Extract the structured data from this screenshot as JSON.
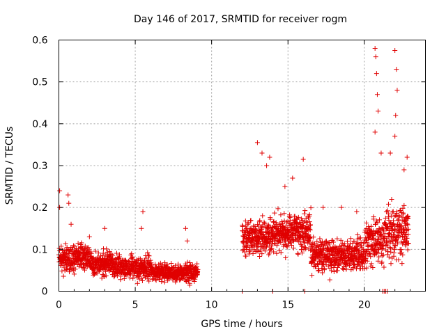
{
  "chart_data": {
    "type": "scatter",
    "title": "Day 146 of 2017, SRMTID for receiver rogm",
    "xlabel": "GPS time / hours",
    "ylabel": "SRMTID / TECUs",
    "xlim": [
      0,
      24
    ],
    "ylim": [
      0,
      0.6
    ],
    "x_ticks": [
      0,
      5,
      10,
      15,
      20
    ],
    "x_tick_labels": [
      "0",
      "5",
      "10",
      "15",
      "20"
    ],
    "y_ticks": [
      0,
      0.1,
      0.2,
      0.3,
      0.4,
      0.5,
      0.6
    ],
    "y_tick_labels": [
      "0",
      "0.1",
      "0.2",
      "0.3",
      "0.4",
      "0.5",
      "0.6"
    ],
    "grid": true,
    "marker": "plus",
    "color": "#e00000",
    "series": [
      {
        "name": "SRMTID",
        "segments": [
          {
            "x_start": 0.0,
            "x_end": 2.0,
            "y_mean": 0.08,
            "y_spread": 0.05,
            "outliers": [
              [
                0.05,
                0.24
              ],
              [
                0.05,
                0.2
              ],
              [
                0.6,
                0.23
              ],
              [
                0.65,
                0.21
              ],
              [
                0.8,
                0.16
              ]
            ]
          },
          {
            "x_start": 2.0,
            "x_end": 4.0,
            "y_mean": 0.065,
            "y_spread": 0.045,
            "outliers": [
              [
                2.0,
                0.13
              ],
              [
                3.0,
                0.15
              ]
            ]
          },
          {
            "x_start": 4.0,
            "x_end": 6.0,
            "y_mean": 0.055,
            "y_spread": 0.045,
            "outliers": [
              [
                5.5,
                0.19
              ],
              [
                5.4,
                0.15
              ]
            ]
          },
          {
            "x_start": 6.0,
            "x_end": 9.1,
            "y_mean": 0.045,
            "y_spread": 0.035,
            "outliers": [
              [
                8.3,
                0.15
              ],
              [
                8.4,
                0.12
              ]
            ]
          },
          {
            "x_start": 12.0,
            "x_end": 14.0,
            "y_mean": 0.13,
            "y_spread": 0.07,
            "outliers": [
              [
                13.0,
                0.355
              ],
              [
                13.3,
                0.33
              ],
              [
                13.6,
                0.3
              ],
              [
                13.8,
                0.32
              ]
            ]
          },
          {
            "x_start": 14.0,
            "x_end": 16.5,
            "y_mean": 0.14,
            "y_spread": 0.07,
            "outliers": [
              [
                16.0,
                0.315
              ],
              [
                15.3,
                0.27
              ],
              [
                14.8,
                0.25
              ]
            ]
          },
          {
            "x_start": 16.5,
            "x_end": 20.0,
            "y_mean": 0.085,
            "y_spread": 0.06,
            "outliers": [
              [
                17.3,
                0.2
              ],
              [
                18.5,
                0.2
              ],
              [
                19.5,
                0.19
              ]
            ]
          },
          {
            "x_start": 20.0,
            "x_end": 21.3,
            "y_mean": 0.12,
            "y_spread": 0.09,
            "outliers": [
              [
                20.7,
                0.58
              ],
              [
                20.75,
                0.56
              ],
              [
                20.8,
                0.52
              ],
              [
                20.85,
                0.47
              ],
              [
                20.9,
                0.43
              ],
              [
                20.7,
                0.38
              ],
              [
                21.1,
                0.33
              ]
            ]
          },
          {
            "x_start": 21.3,
            "x_end": 22.9,
            "y_mean": 0.14,
            "y_spread": 0.09,
            "outliers": [
              [
                22.0,
                0.575
              ],
              [
                22.1,
                0.53
              ],
              [
                22.15,
                0.48
              ],
              [
                22.05,
                0.42
              ],
              [
                22.0,
                0.37
              ],
              [
                21.7,
                0.33
              ],
              [
                22.8,
                0.32
              ],
              [
                22.6,
                0.29
              ]
            ]
          }
        ],
        "zero_points": [
          [
            12.0,
            0.0
          ],
          [
            14.0,
            0.0
          ],
          [
            16.1,
            0.0
          ],
          [
            21.2,
            0.0
          ],
          [
            21.3,
            0.0
          ],
          [
            21.4,
            0.0
          ],
          [
            21.5,
            0.0
          ]
        ]
      }
    ]
  }
}
